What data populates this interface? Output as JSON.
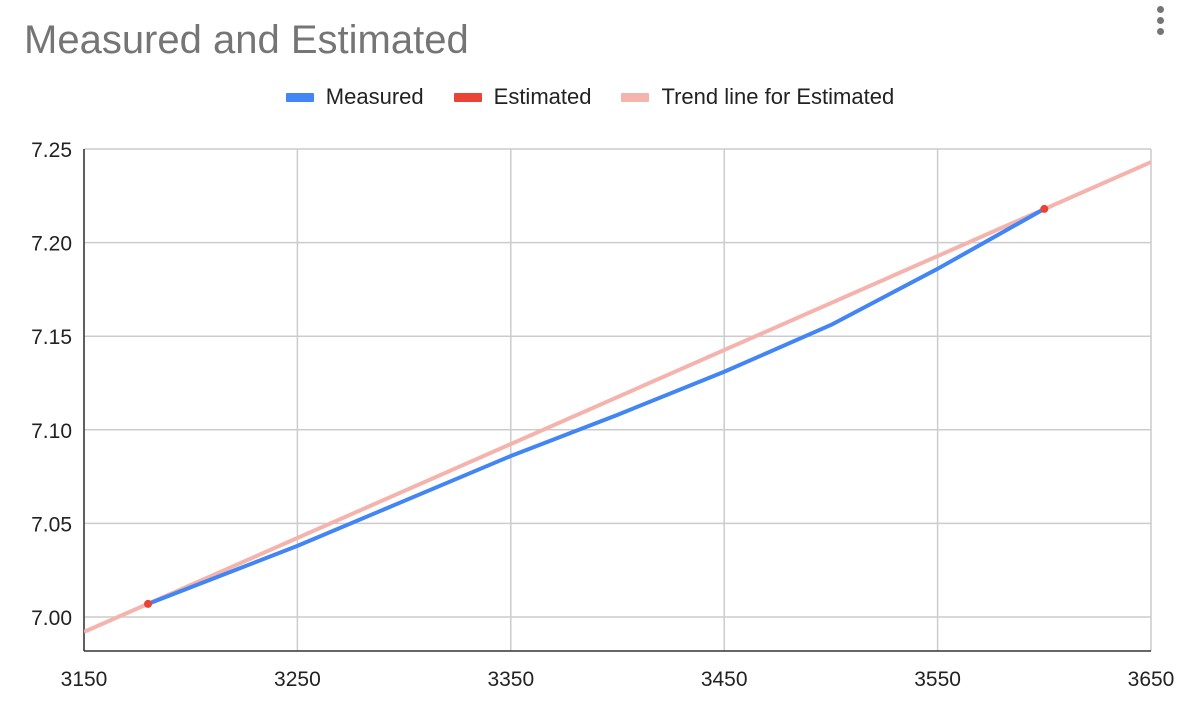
{
  "chart_data": {
    "type": "line",
    "title": "Measured and Estimated",
    "xlabel": "",
    "ylabel": "",
    "xlim": [
      3150,
      3650
    ],
    "ylim": [
      6.98,
      7.25
    ],
    "x_ticks": [
      "3150",
      "3250",
      "3350",
      "3450",
      "3550",
      "3650"
    ],
    "x_tick_values": [
      3150,
      3250,
      3350,
      3450,
      3550,
      3650
    ],
    "y_ticks": [
      "7.00",
      "7.05",
      "7.10",
      "7.15",
      "7.20",
      "7.25"
    ],
    "y_tick_values": [
      7.0,
      7.05,
      7.1,
      7.15,
      7.2,
      7.25
    ],
    "grid": true,
    "legend_position": "top",
    "series": [
      {
        "name": "Measured",
        "color": "#4285f4",
        "style": "line",
        "x": [
          3180,
          3250,
          3300,
          3350,
          3400,
          3450,
          3500,
          3550,
          3600
        ],
        "y": [
          7.007,
          7.038,
          7.062,
          7.086,
          7.108,
          7.131,
          7.156,
          7.186,
          7.218
        ]
      },
      {
        "name": "Estimated",
        "color": "#ea4335",
        "style": "points",
        "x": [
          3180,
          3600
        ],
        "y": [
          7.007,
          7.218
        ]
      },
      {
        "name": "Trend line for Estimated",
        "color": "#f4b3ad",
        "style": "trendline",
        "x": [
          3150,
          3650
        ],
        "y": [
          6.992,
          7.243
        ]
      }
    ]
  }
}
